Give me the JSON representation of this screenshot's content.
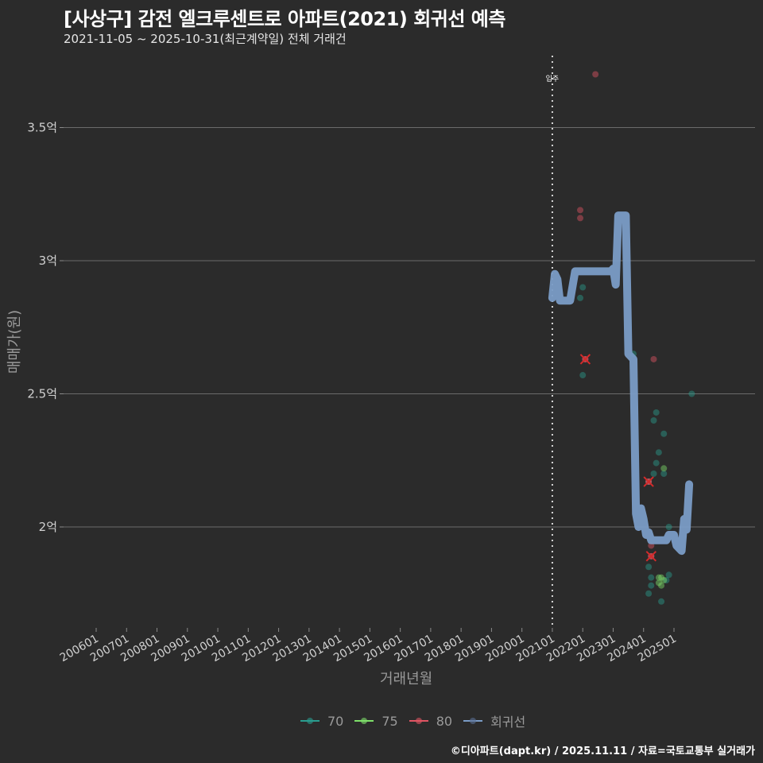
{
  "header": {
    "title": "[사상구] 감전 엘크루센트로 아파트(2021) 회귀선 예측",
    "subtitle": "2021-11-05 ~ 2025-10-31(최근계약일) 전체 거래건"
  },
  "axes": {
    "ylabel": "매매가(원)",
    "xlabel": "거래년월",
    "yticks": [
      "3.5억",
      "3억",
      "2.5억",
      "2억"
    ],
    "xticks": [
      "200601",
      "200701",
      "200801",
      "200901",
      "201001",
      "201101",
      "201201",
      "201301",
      "201401",
      "201501",
      "201601",
      "201701",
      "201801",
      "201901",
      "202001",
      "202101",
      "202201",
      "202301",
      "202401",
      "202501"
    ],
    "vline_label": "입주"
  },
  "legend": {
    "items": [
      {
        "label": "70",
        "color": "#2a9d8f"
      },
      {
        "label": "75",
        "color": "#7ee06a"
      },
      {
        "label": "80",
        "color": "#e05563"
      },
      {
        "label": "회귀선",
        "color": "#7a9cc6"
      }
    ]
  },
  "footer": {
    "credit": "©디아파트(dapt.kr) / 2025.11.11 / 자료=국토교통부 실거래가"
  },
  "chart_data": {
    "type": "scatter",
    "title": "[사상구] 감전 엘크루센트로 아파트(2021) 회귀선 예측",
    "subtitle": "2021-11-05 ~ 2025-10-31(최근계약일) 전체 거래건",
    "xlabel": "거래년월",
    "ylabel": "매매가(원)",
    "ylim": [
      1.62,
      3.78
    ],
    "y_unit": "억원",
    "x_range": [
      "200601",
      "202510"
    ],
    "grid": "horizontal major",
    "legend_position": "bottom",
    "annotations": [
      {
        "type": "vline",
        "x": "202101",
        "label": "입주",
        "style": "dotted"
      }
    ],
    "series": [
      {
        "name": "70",
        "color": "#2a9d8f",
        "points": [
          {
            "x": "2021-12",
            "y": 2.86
          },
          {
            "x": "2022-01",
            "y": 2.57
          },
          {
            "x": "2022-01",
            "y": 2.9
          },
          {
            "x": "2023-09",
            "y": 2.65
          },
          {
            "x": "2024-03",
            "y": 1.75
          },
          {
            "x": "2024-03",
            "y": 1.85
          },
          {
            "x": "2024-04",
            "y": 1.78
          },
          {
            "x": "2024-04",
            "y": 1.81
          },
          {
            "x": "2024-05",
            "y": 2.4
          },
          {
            "x": "2024-05",
            "y": 2.2
          },
          {
            "x": "2024-06",
            "y": 2.43
          },
          {
            "x": "2024-06",
            "y": 2.24
          },
          {
            "x": "2024-07",
            "y": 2.28
          },
          {
            "x": "2024-08",
            "y": 1.72
          },
          {
            "x": "2024-09",
            "y": 2.35
          },
          {
            "x": "2024-09",
            "y": 2.2
          },
          {
            "x": "2024-10",
            "y": 1.8
          },
          {
            "x": "2024-11",
            "y": 2.0
          },
          {
            "x": "2024-11",
            "y": 1.82
          },
          {
            "x": "2025-08",
            "y": 2.5
          },
          {
            "x": "2024-03",
            "y": 2.17
          }
        ]
      },
      {
        "name": "75",
        "color": "#7ee06a",
        "points": [
          {
            "x": "2024-07",
            "y": 1.81
          },
          {
            "x": "2024-07",
            "y": 1.79
          },
          {
            "x": "2024-08",
            "y": 1.81
          },
          {
            "x": "2024-08",
            "y": 1.78
          },
          {
            "x": "2024-09",
            "y": 2.22
          },
          {
            "x": "2024-09",
            "y": 1.8
          }
        ]
      },
      {
        "name": "80",
        "color": "#e05563",
        "points": [
          {
            "x": "2021-12",
            "y": 3.19
          },
          {
            "x": "2021-12",
            "y": 3.16
          },
          {
            "x": "2022-02",
            "y": 2.63
          },
          {
            "x": "2022-06",
            "y": 3.7
          },
          {
            "x": "2024-03",
            "y": 2.17
          },
          {
            "x": "2024-04",
            "y": 1.93
          },
          {
            "x": "2024-04",
            "y": 1.89
          },
          {
            "x": "2024-05",
            "y": 2.63
          }
        ]
      },
      {
        "name": "회귀선",
        "color": "#7a9cc6",
        "type": "line",
        "points": [
          {
            "x": "2021-01",
            "y": 2.86
          },
          {
            "x": "2021-02",
            "y": 2.95
          },
          {
            "x": "2021-03",
            "y": 2.93
          },
          {
            "x": "2021-04",
            "y": 2.85
          },
          {
            "x": "2021-08",
            "y": 2.85
          },
          {
            "x": "2021-10",
            "y": 2.96
          },
          {
            "x": "2022-12",
            "y": 2.96
          },
          {
            "x": "2023-01",
            "y": 2.97
          },
          {
            "x": "2023-02",
            "y": 2.91
          },
          {
            "x": "2023-03",
            "y": 3.17
          },
          {
            "x": "2023-06",
            "y": 3.17
          },
          {
            "x": "2023-07",
            "y": 2.65
          },
          {
            "x": "2023-09",
            "y": 2.63
          },
          {
            "x": "2023-10",
            "y": 2.05
          },
          {
            "x": "2023-11",
            "y": 2.0
          },
          {
            "x": "2023-12",
            "y": 2.07
          },
          {
            "x": "2024-01",
            "y": 2.03
          },
          {
            "x": "2024-02",
            "y": 1.97
          },
          {
            "x": "2024-03",
            "y": 1.98
          },
          {
            "x": "2024-04",
            "y": 1.95
          },
          {
            "x": "2024-10",
            "y": 1.95
          },
          {
            "x": "2024-11",
            "y": 1.97
          },
          {
            "x": "2025-01",
            "y": 1.97
          },
          {
            "x": "2025-02",
            "y": 1.93
          },
          {
            "x": "2025-04",
            "y": 1.91
          },
          {
            "x": "2025-05",
            "y": 2.03
          },
          {
            "x": "2025-06",
            "y": 1.99
          },
          {
            "x": "2025-07",
            "y": 2.16
          }
        ]
      }
    ],
    "highlighted_points": [
      {
        "x": "2022-02",
        "y": 2.63,
        "marker": "x"
      },
      {
        "x": "2024-03",
        "y": 2.17,
        "marker": "x"
      },
      {
        "x": "2024-04",
        "y": 1.89,
        "marker": "x"
      }
    ]
  }
}
